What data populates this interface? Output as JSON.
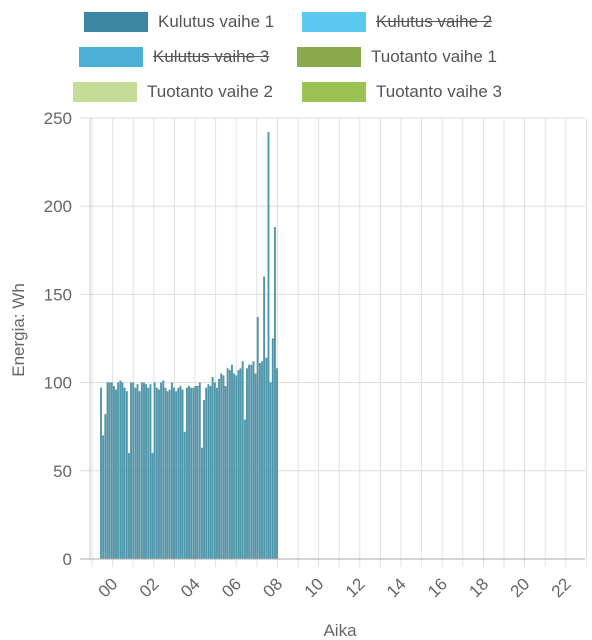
{
  "chart_data": {
    "type": "bar",
    "xlabel": "Aika",
    "ylabel": "Energia: Wh",
    "ylim": [
      0,
      250
    ],
    "yticks": [
      "0",
      "50",
      "100",
      "150",
      "200",
      "250"
    ],
    "xticks": [
      "00",
      "02",
      "04",
      "06",
      "08",
      "10",
      "12",
      "14",
      "16",
      "18",
      "20",
      "22"
    ],
    "grid": true,
    "legend_position": "top",
    "legend": [
      {
        "name": "Kulutus vaihe 1",
        "color": "#3a86a3",
        "hidden": false
      },
      {
        "name": "Kulutus vaihe 2",
        "color": "#5bc8f2",
        "hidden": true
      },
      {
        "name": "Kulutus vaihe 3",
        "color": "#4bafd6",
        "hidden": true
      },
      {
        "name": "Tuotanto vaihe 1",
        "color": "#8aa94a",
        "hidden": false
      },
      {
        "name": "Tuotanto vaihe 2",
        "color": "#c4dc97",
        "hidden": false
      },
      {
        "name": "Tuotanto vaihe 3",
        "color": "#9cc253",
        "hidden": false
      }
    ],
    "series": [
      {
        "name": "Kulutus vaihe 1",
        "color": "#4f98ad",
        "x_start_hour": -0.6,
        "x_end_hour": 8.05,
        "values": [
          97,
          70,
          82,
          100,
          100,
          100,
          98,
          96,
          100,
          101,
          100,
          97,
          95,
          60,
          100,
          100,
          97,
          99,
          95,
          100,
          100,
          99,
          97,
          99,
          60,
          100,
          97,
          96,
          100,
          101,
          97,
          95,
          96,
          100,
          97,
          95,
          97,
          98,
          96,
          72,
          97,
          98,
          97,
          97,
          98,
          98,
          100,
          63,
          90,
          97,
          99,
          98,
          103,
          100,
          97,
          102,
          105,
          104,
          98,
          108,
          107,
          110,
          105,
          104,
          107,
          108,
          112,
          79,
          108,
          110,
          110,
          112,
          105,
          137,
          111,
          112,
          160,
          114,
          242,
          100,
          125,
          188,
          108
        ]
      }
    ]
  }
}
